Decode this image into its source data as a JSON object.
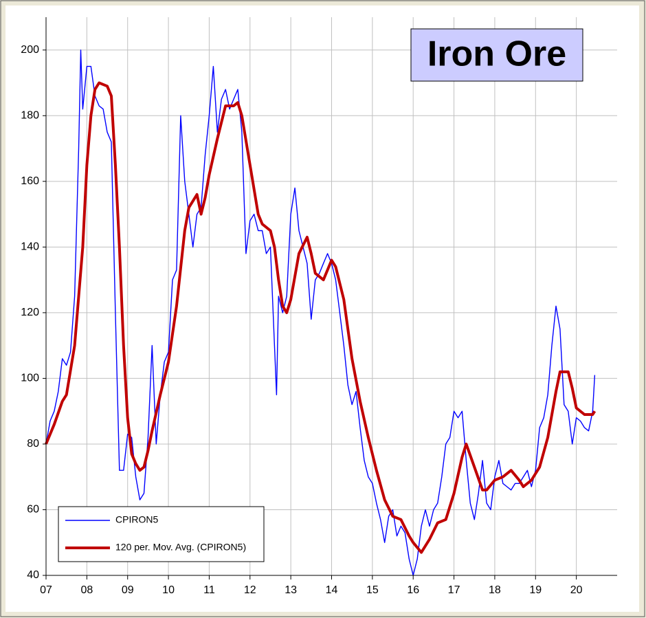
{
  "chart_data": {
    "type": "line",
    "title": "Iron Ore",
    "xlim": [
      7,
      21
    ],
    "ylim": [
      40,
      210
    ],
    "xticks": [
      {
        "value": 7,
        "label": "07"
      },
      {
        "value": 8,
        "label": "08"
      },
      {
        "value": 9,
        "label": "09"
      },
      10,
      11,
      12,
      13,
      14,
      15,
      16,
      17,
      18,
      19,
      20
    ],
    "yticks": [
      40,
      60,
      80,
      100,
      120,
      140,
      160,
      180,
      200
    ],
    "grid": true,
    "legend": "lower-left",
    "series": [
      {
        "name": "CPIRON5",
        "color": "#0000ff",
        "x": [
          7.0,
          7.1,
          7.2,
          7.3,
          7.4,
          7.5,
          7.6,
          7.7,
          7.8,
          7.85,
          7.9,
          8.0,
          8.1,
          8.2,
          8.3,
          8.4,
          8.5,
          8.6,
          8.7,
          8.8,
          8.9,
          9.0,
          9.1,
          9.2,
          9.3,
          9.4,
          9.5,
          9.6,
          9.7,
          9.8,
          9.9,
          10.0,
          10.1,
          10.2,
          10.3,
          10.4,
          10.5,
          10.6,
          10.7,
          10.8,
          10.9,
          11.0,
          11.1,
          11.2,
          11.3,
          11.4,
          11.5,
          11.6,
          11.7,
          11.8,
          11.9,
          12.0,
          12.1,
          12.2,
          12.3,
          12.4,
          12.5,
          12.6,
          12.65,
          12.7,
          12.8,
          12.9,
          13.0,
          13.1,
          13.2,
          13.3,
          13.4,
          13.5,
          13.6,
          13.7,
          13.8,
          13.9,
          14.0,
          14.1,
          14.2,
          14.3,
          14.4,
          14.5,
          14.6,
          14.7,
          14.8,
          14.9,
          15.0,
          15.1,
          15.2,
          15.3,
          15.4,
          15.5,
          15.6,
          15.7,
          15.8,
          15.9,
          16.0,
          16.1,
          16.2,
          16.3,
          16.4,
          16.5,
          16.6,
          16.7,
          16.8,
          16.9,
          17.0,
          17.1,
          17.2,
          17.3,
          17.4,
          17.5,
          17.6,
          17.7,
          17.8,
          17.9,
          18.0,
          18.1,
          18.2,
          18.3,
          18.4,
          18.5,
          18.6,
          18.7,
          18.8,
          18.9,
          19.0,
          19.1,
          19.2,
          19.3,
          19.4,
          19.5,
          19.6,
          19.7,
          19.8,
          19.9,
          20.0,
          20.1,
          20.2,
          20.3,
          20.4,
          20.45
        ],
        "values": [
          80,
          87,
          90,
          96,
          106,
          104,
          108,
          125,
          170,
          200,
          182,
          195,
          195,
          186,
          183,
          182,
          175,
          172,
          120,
          72,
          72,
          83,
          82,
          70,
          63,
          65,
          82,
          110,
          80,
          95,
          105,
          108,
          130,
          133,
          180,
          160,
          150,
          140,
          150,
          152,
          168,
          180,
          195,
          175,
          185,
          188,
          182,
          185,
          188,
          175,
          138,
          148,
          150,
          145,
          145,
          138,
          140,
          110,
          95,
          125,
          120,
          125,
          150,
          158,
          145,
          140,
          135,
          118,
          130,
          132,
          135,
          138,
          135,
          130,
          120,
          110,
          98,
          92,
          96,
          85,
          75,
          70,
          68,
          62,
          57,
          50,
          58,
          60,
          52,
          55,
          53,
          45,
          40,
          45,
          55,
          60,
          55,
          60,
          62,
          70,
          80,
          82,
          90,
          88,
          90,
          75,
          62,
          57,
          65,
          75,
          62,
          60,
          70,
          75,
          68,
          67,
          66,
          68,
          68,
          70,
          72,
          67,
          72,
          85,
          88,
          95,
          110,
          122,
          115,
          92,
          90,
          80,
          88,
          87,
          85,
          84,
          90,
          101
        ]
      },
      {
        "name": "120 per. Mov. Avg. (CPIRON5)",
        "color": "#c00000",
        "x": [
          7.0,
          7.2,
          7.4,
          7.5,
          7.7,
          7.9,
          8.0,
          8.1,
          8.2,
          8.3,
          8.5,
          8.6,
          8.7,
          8.8,
          8.9,
          9.0,
          9.1,
          9.2,
          9.3,
          9.4,
          9.5,
          9.6,
          9.8,
          10.0,
          10.2,
          10.4,
          10.5,
          10.7,
          10.8,
          10.9,
          11.0,
          11.2,
          11.4,
          11.6,
          11.7,
          11.8,
          12.0,
          12.2,
          12.3,
          12.5,
          12.6,
          12.7,
          12.8,
          12.9,
          13.0,
          13.2,
          13.4,
          13.5,
          13.6,
          13.8,
          14.0,
          14.1,
          14.3,
          14.5,
          14.7,
          14.9,
          15.1,
          15.3,
          15.5,
          15.7,
          15.9,
          16.0,
          16.2,
          16.4,
          16.6,
          16.8,
          17.0,
          17.2,
          17.3,
          17.5,
          17.7,
          17.8,
          18.0,
          18.2,
          18.4,
          18.6,
          18.7,
          18.9,
          19.1,
          19.3,
          19.5,
          19.6,
          19.8,
          19.9,
          20.0,
          20.2,
          20.4,
          20.45
        ],
        "values": [
          80,
          86,
          93,
          95,
          110,
          140,
          165,
          180,
          188,
          190,
          189,
          186,
          165,
          140,
          110,
          88,
          77,
          74,
          72,
          73,
          78,
          84,
          95,
          105,
          122,
          145,
          152,
          156,
          150,
          155,
          162,
          173,
          183,
          183,
          184,
          180,
          165,
          150,
          147,
          145,
          140,
          130,
          122,
          120,
          124,
          138,
          143,
          138,
          132,
          130,
          136,
          134,
          124,
          106,
          93,
          82,
          72,
          63,
          58,
          57,
          52,
          50,
          47,
          51,
          56,
          57,
          65,
          76,
          80,
          73,
          66,
          66,
          69,
          70,
          72,
          69,
          67,
          69,
          73,
          82,
          96,
          102,
          102,
          97,
          91,
          89,
          89,
          90
        ]
      }
    ]
  }
}
